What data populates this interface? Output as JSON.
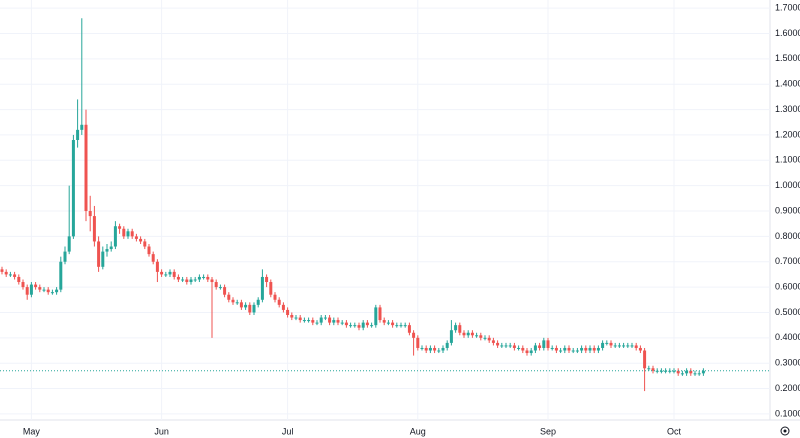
{
  "chart_data": {
    "type": "candlestick",
    "categories": [
      null,
      null,
      null,
      null,
      null,
      null,
      null,
      "May",
      null,
      null,
      null,
      null,
      null,
      null,
      null,
      null,
      null,
      null,
      null,
      null,
      null,
      null,
      null,
      null,
      null,
      null,
      null,
      null,
      null,
      null,
      null,
      null,
      null,
      null,
      null,
      null,
      null,
      null,
      "Jun",
      null,
      null,
      null,
      null,
      null,
      null,
      null,
      null,
      null,
      null,
      null,
      null,
      null,
      null,
      null,
      null,
      null,
      null,
      null,
      null,
      null,
      null,
      null,
      null,
      null,
      null,
      null,
      null,
      null,
      "Jul",
      null,
      null,
      null,
      null,
      null,
      null,
      null,
      null,
      null,
      null,
      null,
      null,
      null,
      null,
      null,
      null,
      null,
      null,
      null,
      null,
      null,
      null,
      null,
      null,
      null,
      null,
      null,
      null,
      null,
      null,
      "Aug",
      null,
      null,
      null,
      null,
      null,
      null,
      null,
      null,
      null,
      null,
      null,
      null,
      null,
      null,
      null,
      null,
      null,
      null,
      null,
      null,
      null,
      null,
      null,
      null,
      null,
      null,
      null,
      null,
      null,
      null,
      "Sep",
      null,
      null,
      null,
      null,
      null,
      null,
      null,
      null,
      null,
      null,
      null,
      null,
      null,
      null,
      null,
      null,
      null,
      null,
      null,
      null,
      null,
      null,
      null,
      null,
      null,
      null,
      null,
      null,
      null,
      "Oct",
      null,
      null,
      null,
      null,
      null,
      null,
      null
    ],
    "open": [
      0.67,
      0.66,
      0.65,
      0.65,
      0.64,
      0.62,
      0.6,
      0.57,
      0.61,
      0.6,
      0.59,
      0.59,
      0.58,
      0.58,
      0.59,
      0.7,
      0.74,
      0.8,
      1.18,
      1.22,
      1.24,
      0.9,
      0.88,
      0.78,
      0.68,
      0.74,
      0.75,
      0.76,
      0.84,
      0.83,
      0.8,
      0.82,
      0.8,
      0.79,
      0.78,
      0.76,
      0.73,
      0.7,
      0.66,
      0.65,
      0.65,
      0.66,
      0.64,
      0.63,
      0.63,
      0.62,
      0.63,
      0.63,
      0.64,
      0.64,
      0.63,
      0.62,
      0.6,
      0.6,
      0.57,
      0.55,
      0.54,
      0.54,
      0.52,
      0.53,
      0.5,
      0.53,
      0.55,
      0.64,
      0.62,
      0.57,
      0.55,
      0.53,
      0.51,
      0.49,
      0.48,
      0.48,
      0.47,
      0.47,
      0.47,
      0.46,
      0.46,
      0.48,
      0.48,
      0.46,
      0.47,
      0.46,
      0.46,
      0.45,
      0.45,
      0.45,
      0.44,
      0.46,
      0.45,
      0.45,
      0.52,
      0.47,
      0.46,
      0.46,
      0.45,
      0.45,
      0.45,
      0.45,
      0.42,
      0.4,
      0.36,
      0.36,
      0.35,
      0.36,
      0.35,
      0.35,
      0.36,
      0.38,
      0.43,
      0.45,
      0.42,
      0.41,
      0.42,
      0.41,
      0.41,
      0.4,
      0.4,
      0.39,
      0.38,
      0.37,
      0.37,
      0.37,
      0.37,
      0.36,
      0.36,
      0.35,
      0.34,
      0.35,
      0.37,
      0.36,
      0.39,
      0.36,
      0.36,
      0.35,
      0.35,
      0.36,
      0.35,
      0.35,
      0.35,
      0.36,
      0.35,
      0.36,
      0.35,
      0.36,
      0.38,
      0.38,
      0.37,
      0.37,
      0.37,
      0.37,
      0.37,
      0.37,
      0.36,
      0.35,
      0.28,
      0.28,
      0.27,
      0.27,
      0.27,
      0.27,
      0.27,
      0.27,
      0.26,
      0.26,
      0.27,
      0.26,
      0.26,
      0.26
    ],
    "high": [
      0.68,
      0.67,
      0.66,
      0.66,
      0.65,
      0.63,
      0.61,
      0.62,
      0.62,
      0.61,
      0.6,
      0.6,
      0.59,
      0.6,
      0.72,
      0.76,
      1.0,
      1.2,
      1.34,
      1.66,
      1.3,
      0.96,
      0.92,
      0.8,
      0.76,
      0.77,
      0.78,
      0.86,
      0.85,
      0.84,
      0.83,
      0.83,
      0.81,
      0.8,
      0.79,
      0.77,
      0.74,
      0.71,
      0.67,
      0.66,
      0.67,
      0.67,
      0.65,
      0.64,
      0.64,
      0.64,
      0.64,
      0.65,
      0.65,
      0.65,
      0.64,
      0.63,
      0.61,
      0.61,
      0.58,
      0.56,
      0.55,
      0.55,
      0.54,
      0.54,
      0.54,
      0.56,
      0.67,
      0.65,
      0.63,
      0.58,
      0.56,
      0.54,
      0.52,
      0.5,
      0.49,
      0.49,
      0.48,
      0.48,
      0.48,
      0.47,
      0.49,
      0.49,
      0.49,
      0.48,
      0.48,
      0.47,
      0.47,
      0.46,
      0.46,
      0.46,
      0.47,
      0.47,
      0.46,
      0.53,
      0.53,
      0.48,
      0.47,
      0.47,
      0.46,
      0.46,
      0.46,
      0.46,
      0.43,
      0.41,
      0.37,
      0.37,
      0.37,
      0.37,
      0.36,
      0.37,
      0.39,
      0.47,
      0.46,
      0.46,
      0.43,
      0.43,
      0.43,
      0.42,
      0.42,
      0.41,
      0.41,
      0.4,
      0.39,
      0.38,
      0.38,
      0.38,
      0.38,
      0.37,
      0.37,
      0.36,
      0.36,
      0.38,
      0.38,
      0.4,
      0.4,
      0.37,
      0.37,
      0.36,
      0.37,
      0.37,
      0.36,
      0.36,
      0.37,
      0.37,
      0.37,
      0.37,
      0.37,
      0.39,
      0.39,
      0.39,
      0.38,
      0.38,
      0.38,
      0.38,
      0.38,
      0.38,
      0.37,
      0.36,
      0.29,
      0.29,
      0.28,
      0.28,
      0.28,
      0.28,
      0.28,
      0.28,
      0.27,
      0.28,
      0.28,
      0.27,
      0.27,
      0.28
    ],
    "low": [
      0.65,
      0.64,
      0.64,
      0.63,
      0.61,
      0.59,
      0.55,
      0.56,
      0.59,
      0.58,
      0.58,
      0.57,
      0.57,
      0.57,
      0.58,
      0.69,
      0.73,
      0.79,
      1.15,
      1.2,
      0.86,
      0.82,
      0.76,
      0.66,
      0.67,
      0.72,
      0.74,
      0.75,
      0.81,
      0.79,
      0.79,
      0.79,
      0.78,
      0.77,
      0.75,
      0.72,
      0.69,
      0.62,
      0.64,
      0.64,
      0.64,
      0.63,
      0.62,
      0.62,
      0.61,
      0.61,
      0.62,
      0.62,
      0.63,
      0.62,
      0.4,
      0.59,
      0.59,
      0.56,
      0.54,
      0.53,
      0.53,
      0.51,
      0.51,
      0.49,
      0.49,
      0.52,
      0.54,
      0.6,
      0.56,
      0.54,
      0.52,
      0.5,
      0.48,
      0.47,
      0.47,
      0.46,
      0.46,
      0.46,
      0.45,
      0.45,
      0.45,
      0.47,
      0.45,
      0.45,
      0.45,
      0.45,
      0.44,
      0.44,
      0.44,
      0.43,
      0.43,
      0.44,
      0.44,
      0.44,
      0.46,
      0.45,
      0.45,
      0.44,
      0.44,
      0.44,
      0.44,
      0.41,
      0.33,
      0.35,
      0.35,
      0.34,
      0.34,
      0.34,
      0.34,
      0.34,
      0.35,
      0.37,
      0.42,
      0.41,
      0.4,
      0.4,
      0.4,
      0.4,
      0.39,
      0.39,
      0.38,
      0.37,
      0.36,
      0.36,
      0.36,
      0.36,
      0.35,
      0.35,
      0.34,
      0.33,
      0.33,
      0.34,
      0.35,
      0.35,
      0.35,
      0.35,
      0.34,
      0.34,
      0.34,
      0.34,
      0.34,
      0.34,
      0.34,
      0.34,
      0.34,
      0.34,
      0.34,
      0.35,
      0.37,
      0.36,
      0.36,
      0.36,
      0.36,
      0.36,
      0.36,
      0.35,
      0.34,
      0.19,
      0.27,
      0.26,
      0.26,
      0.26,
      0.26,
      0.26,
      0.26,
      0.25,
      0.25,
      0.25,
      0.25,
      0.25,
      0.25,
      0.25
    ],
    "close": [
      0.66,
      0.65,
      0.65,
      0.64,
      0.62,
      0.6,
      0.57,
      0.61,
      0.6,
      0.59,
      0.59,
      0.58,
      0.58,
      0.59,
      0.7,
      0.74,
      0.8,
      1.18,
      1.22,
      1.24,
      0.9,
      0.88,
      0.78,
      0.68,
      0.74,
      0.75,
      0.76,
      0.84,
      0.83,
      0.8,
      0.82,
      0.8,
      0.79,
      0.78,
      0.76,
      0.73,
      0.7,
      0.66,
      0.65,
      0.65,
      0.66,
      0.64,
      0.63,
      0.63,
      0.62,
      0.63,
      0.63,
      0.64,
      0.64,
      0.63,
      0.62,
      0.6,
      0.6,
      0.57,
      0.55,
      0.54,
      0.54,
      0.52,
      0.53,
      0.5,
      0.53,
      0.55,
      0.64,
      0.62,
      0.57,
      0.55,
      0.53,
      0.51,
      0.49,
      0.48,
      0.48,
      0.47,
      0.47,
      0.47,
      0.46,
      0.46,
      0.48,
      0.48,
      0.46,
      0.47,
      0.46,
      0.46,
      0.45,
      0.45,
      0.45,
      0.44,
      0.46,
      0.45,
      0.45,
      0.52,
      0.47,
      0.46,
      0.46,
      0.45,
      0.45,
      0.45,
      0.45,
      0.42,
      0.4,
      0.36,
      0.36,
      0.35,
      0.36,
      0.35,
      0.35,
      0.36,
      0.38,
      0.43,
      0.45,
      0.42,
      0.41,
      0.42,
      0.41,
      0.41,
      0.4,
      0.4,
      0.39,
      0.38,
      0.37,
      0.37,
      0.37,
      0.37,
      0.36,
      0.36,
      0.35,
      0.34,
      0.35,
      0.37,
      0.36,
      0.39,
      0.36,
      0.36,
      0.35,
      0.35,
      0.36,
      0.35,
      0.35,
      0.35,
      0.36,
      0.35,
      0.36,
      0.35,
      0.36,
      0.38,
      0.38,
      0.37,
      0.37,
      0.37,
      0.37,
      0.37,
      0.37,
      0.36,
      0.35,
      0.28,
      0.28,
      0.27,
      0.27,
      0.27,
      0.27,
      0.27,
      0.27,
      0.26,
      0.26,
      0.27,
      0.26,
      0.26,
      0.26,
      0.27
    ],
    "up_color": "#26a69a",
    "down_color": "#ef5350",
    "ylim": [
      0.076,
      1.732
    ],
    "yticks": [
      {
        "value": 0.1,
        "label": "0.1000"
      },
      {
        "value": 0.2,
        "label": "0.2000"
      },
      {
        "value": 0.3,
        "label": "0.3000"
      },
      {
        "value": 0.4,
        "label": "0.4000"
      },
      {
        "value": 0.5,
        "label": "0.5000"
      },
      {
        "value": 0.6,
        "label": "0.6000"
      },
      {
        "value": 0.7,
        "label": "0.7000"
      },
      {
        "value": 0.8,
        "label": "0.8000"
      },
      {
        "value": 0.9,
        "label": "0.9000"
      },
      {
        "value": 1.0,
        "label": "1.0000"
      },
      {
        "value": 1.1,
        "label": "1.1000"
      },
      {
        "value": 1.2,
        "label": "1.2000"
      },
      {
        "value": 1.3,
        "label": "1.3000"
      },
      {
        "value": 1.4,
        "label": "1.4000"
      },
      {
        "value": 1.5,
        "label": "1.5000"
      },
      {
        "value": 1.6,
        "label": "1.6000"
      },
      {
        "value": 1.7,
        "label": "1.7000"
      }
    ],
    "grid": true
  }
}
